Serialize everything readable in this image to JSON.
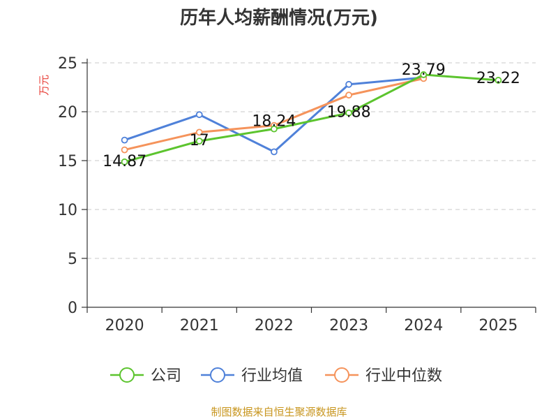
{
  "chart_data": {
    "type": "line",
    "title": "历年人均薪酬情况(万元)",
    "ylabel": "万元",
    "xlabel": "",
    "categories": [
      "2020",
      "2021",
      "2022",
      "2023",
      "2024",
      "2025"
    ],
    "ylim": [
      0,
      25
    ],
    "yticks": [
      0,
      5,
      10,
      15,
      20,
      25
    ],
    "grid": "horizontal-dashed",
    "legend_position": "bottom",
    "series": [
      {
        "name": "公司",
        "color": "#5cc42e",
        "values": [
          14.87,
          17,
          18.24,
          19.88,
          23.79,
          23.22
        ],
        "labels": [
          "14.87",
          "17",
          "18.24",
          "19.88",
          "23.79",
          "23.22"
        ]
      },
      {
        "name": "行业均值",
        "color": "#4f81d9",
        "values": [
          17.1,
          19.7,
          15.9,
          22.8,
          23.5,
          null
        ]
      },
      {
        "name": "行业中位数",
        "color": "#f5935b",
        "values": [
          16.1,
          17.9,
          18.6,
          21.7,
          23.4,
          null
        ]
      }
    ]
  },
  "footer": {
    "source": "制图数据来自恒生聚源数据库"
  }
}
